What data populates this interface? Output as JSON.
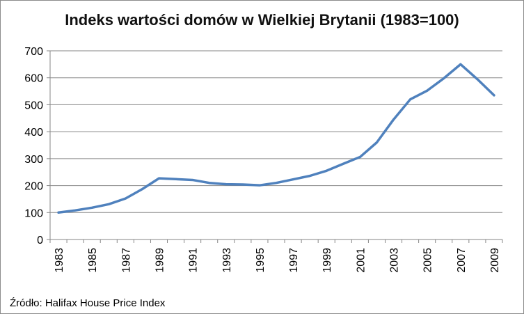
{
  "chart_data": {
    "type": "line",
    "title": "Indeks wartości domów  w Wielkiej Brytanii (1983=100)",
    "xlabel": "",
    "ylabel": "",
    "x": [
      1983,
      1984,
      1985,
      1986,
      1987,
      1988,
      1989,
      1990,
      1991,
      1992,
      1993,
      1994,
      1995,
      1996,
      1997,
      1998,
      1999,
      2000,
      2001,
      2002,
      2003,
      2004,
      2005,
      2006,
      2007,
      2008,
      2009
    ],
    "x_tick_labels": [
      "1983",
      "1985",
      "1987",
      "1989",
      "1991",
      "1993",
      "1995",
      "1997",
      "1999",
      "2001",
      "2003",
      "2005",
      "2007",
      "2009"
    ],
    "y_tick_labels": [
      "0",
      "100",
      "200",
      "300",
      "400",
      "500",
      "600",
      "700"
    ],
    "ylim": [
      0,
      700
    ],
    "grid": true,
    "legend": "none",
    "series": [
      {
        "color": "#4f81bd",
        "values": [
          100,
          108,
          118,
          131,
          152,
          187,
          227,
          224,
          221,
          210,
          205,
          204,
          201,
          210,
          223,
          236,
          255,
          281,
          306,
          360,
          445,
          520,
          552,
          598,
          650,
          595,
          535
        ]
      }
    ]
  },
  "source_note": "Źródło: Halifax House Price Index"
}
